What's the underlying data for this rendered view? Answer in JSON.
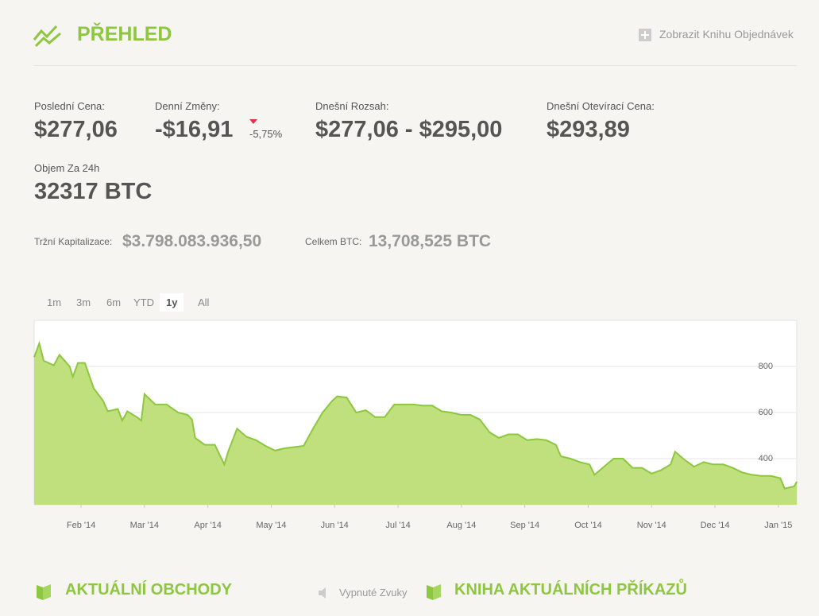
{
  "header": {
    "title": "PŘEHLED",
    "link": "Zobrazit Knihu Objednávek"
  },
  "stats": [
    {
      "label": "Poslední Cena:",
      "value": "$277,06"
    },
    {
      "label": "Denní Změny:",
      "value": "-$16,91",
      "change": "-5,75%"
    },
    {
      "label": "Dnešní Rozsah:",
      "value": "$277,06 - $295,00"
    },
    {
      "label": "Dnešní Otevírací Cena:",
      "value": "$293,89"
    },
    {
      "label": "Objem Za 24h",
      "value": "32317 BTC"
    }
  ],
  "summary": [
    {
      "label": "Tržní Kapitalizace:",
      "value": "$3.798.083.936,50"
    },
    {
      "label": "Celkem BTC:",
      "value": "13,708,525 BTC"
    }
  ],
  "range_buttons": [
    "1m",
    "3m",
    "6m",
    "YTD",
    "1y",
    "All"
  ],
  "active": "1y",
  "chart": {
    "type": "area",
    "color": "#8dc63f",
    "fill": "#c0e07e",
    "grid": true,
    "x": [
      0.26,
      0.34,
      0.41,
      0.57,
      0.66,
      0.82,
      0.87,
      0.95,
      1.06,
      1.2,
      1.35,
      1.42,
      1.58,
      1.65,
      1.73,
      1.88,
      1.95,
      2.0,
      2.17,
      2.35,
      2.53,
      2.68,
      2.75,
      2.8,
      2.95,
      3.11,
      3.26,
      3.32,
      3.46,
      3.61,
      3.76,
      3.91,
      4.06,
      4.21,
      4.36,
      4.51,
      4.66,
      4.81,
      4.96,
      5.04,
      5.19,
      5.34,
      5.49,
      5.64,
      5.79,
      5.94,
      6.09,
      6.24,
      6.39,
      6.54,
      6.69,
      6.84,
      6.99,
      7.14,
      7.29,
      7.44,
      7.59,
      7.74,
      7.89,
      8.04,
      8.19,
      8.34,
      8.49,
      8.57,
      8.72,
      8.87,
      9.02,
      9.1,
      9.25,
      9.4,
      9.55,
      9.7,
      9.85,
      10.0,
      10.15,
      10.3,
      10.37,
      10.52,
      10.67,
      10.82,
      10.97,
      11.13,
      11.28,
      11.43,
      11.58,
      11.73,
      11.88,
      12.03,
      12.1,
      12.25,
      12.29
    ],
    "values": [
      840,
      900,
      825,
      805,
      850,
      800,
      755,
      815,
      815,
      705,
      650,
      605,
      615,
      565,
      605,
      580,
      565,
      680,
      635,
      635,
      600,
      590,
      570,
      490,
      460,
      460,
      375,
      430,
      530,
      495,
      480,
      455,
      435,
      445,
      450,
      455,
      530,
      600,
      650,
      670,
      665,
      600,
      610,
      580,
      580,
      635,
      635,
      635,
      630,
      630,
      605,
      600,
      590,
      590,
      570,
      515,
      490,
      505,
      505,
      480,
      485,
      480,
      460,
      410,
      400,
      385,
      375,
      330,
      365,
      400,
      400,
      360,
      360,
      335,
      350,
      375,
      430,
      395,
      365,
      385,
      375,
      375,
      360,
      340,
      330,
      325,
      325,
      315,
      270,
      280,
      300
    ],
    "xlim": [
      0.26,
      12.29
    ],
    "ylim": [
      200,
      1000
    ],
    "yticks": [
      400,
      600,
      800
    ],
    "xticks": [
      {
        "value": 1,
        "label": "Feb '14"
      },
      {
        "value": 2,
        "label": "Mar '14"
      },
      {
        "value": 3,
        "label": "Apr '14"
      },
      {
        "value": 4,
        "label": "May '14"
      },
      {
        "value": 5,
        "label": "Jun '14"
      },
      {
        "value": 6,
        "label": "Jul '14"
      },
      {
        "value": 7,
        "label": "Aug '14"
      },
      {
        "value": 8,
        "label": "Sep '14"
      },
      {
        "value": 9,
        "label": "Oct '14"
      },
      {
        "value": 10,
        "label": "Nov '14"
      },
      {
        "value": 11,
        "label": "Dec '14"
      },
      {
        "value": 12,
        "label": "Jan '15"
      }
    ]
  },
  "sections": {
    "trades": "AKTUÁLNÍ OBCHODY",
    "sound": "Vypnuté Zvuky",
    "orders": "KNIHA AKTUÁLNÍCH PŘÍKAZŮ"
  }
}
